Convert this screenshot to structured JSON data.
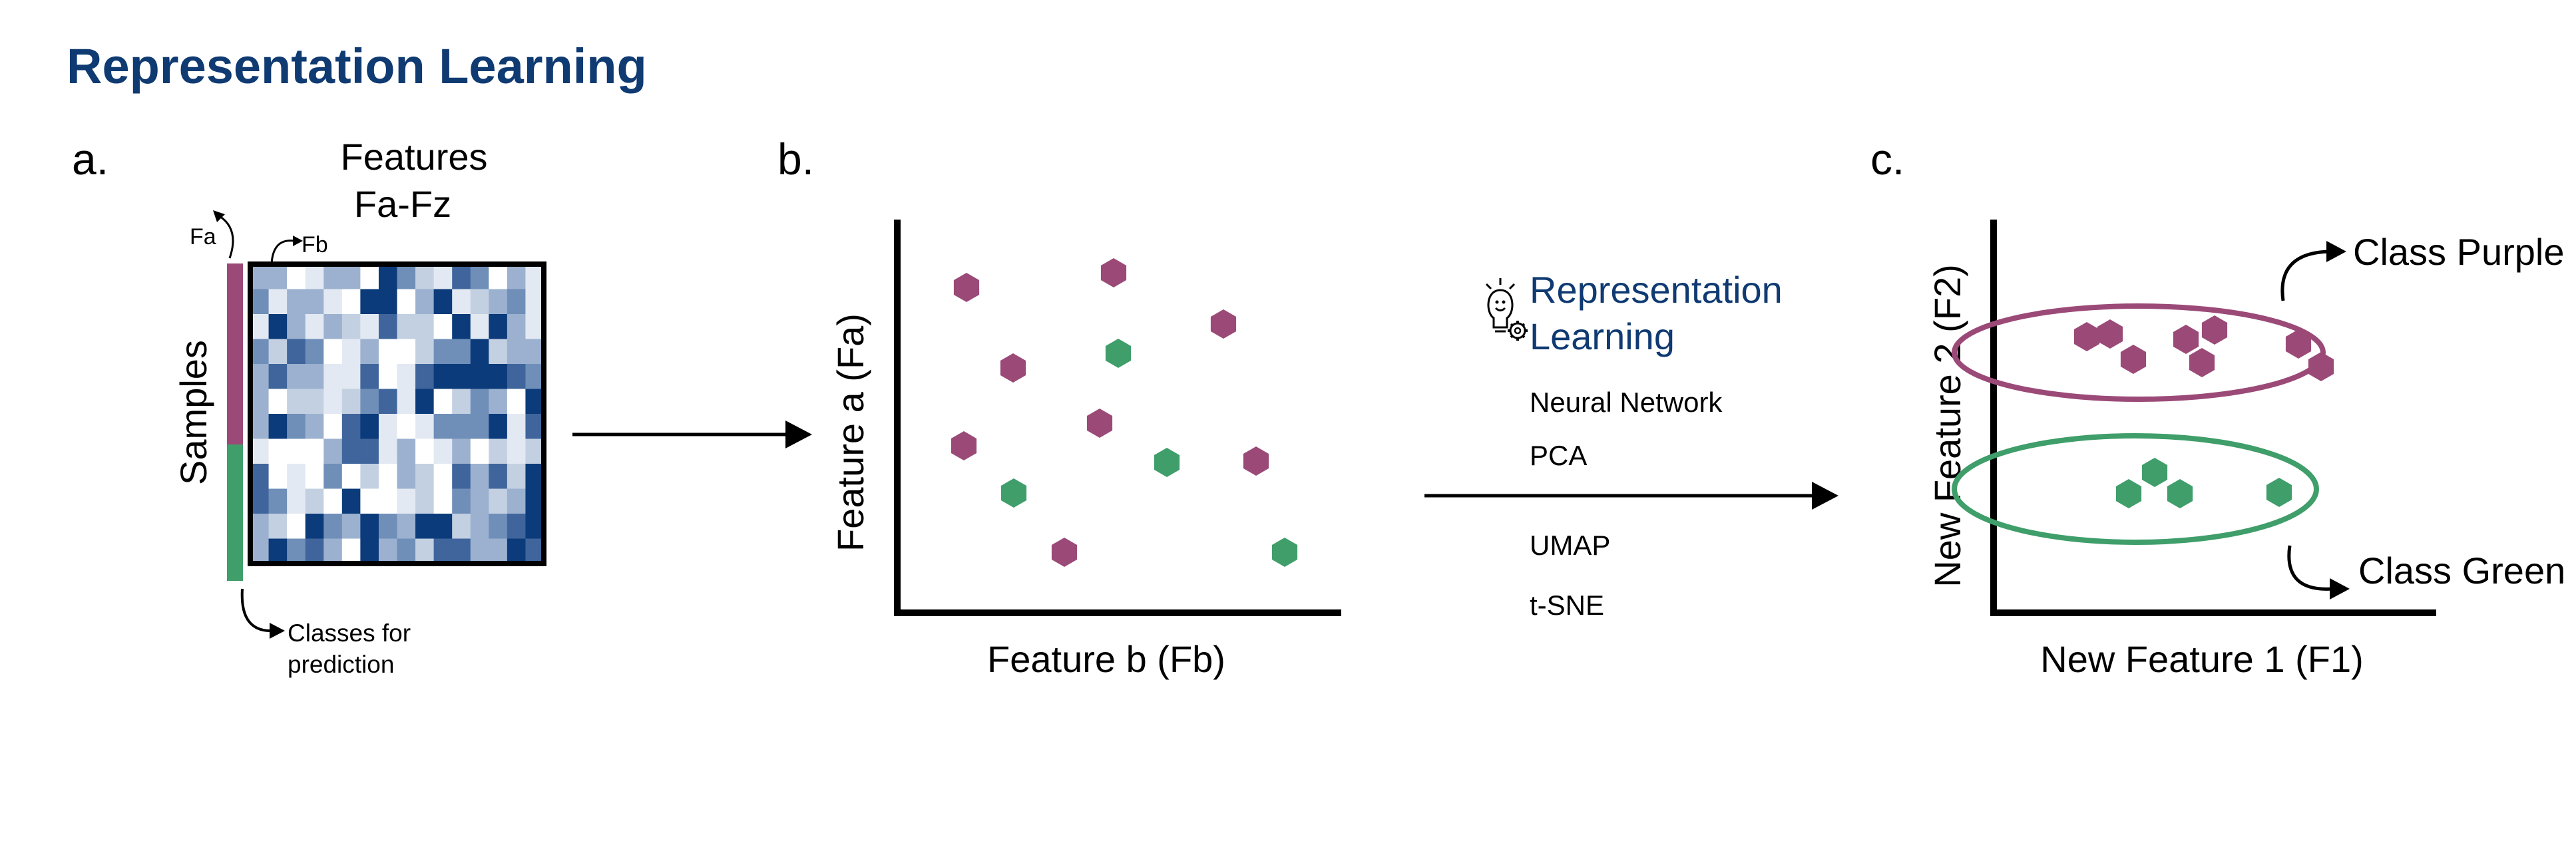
{
  "title": "Representation Learning",
  "colors": {
    "title": "#0f3a72",
    "purple": "#9b4a78",
    "green": "#3f9e6a",
    "matrix_dark": "#0b3b7a",
    "black": "#000000"
  },
  "panel_a": {
    "label": "a.",
    "features_title": "Features",
    "features_range": "Fa-Fz",
    "fa_label": "Fa",
    "fb_label": "Fb",
    "samples_label": "Samples",
    "classes_line1": "Classes for",
    "classes_line2": "prediction"
  },
  "panel_b": {
    "label": "b.",
    "xlabel": "Feature b (Fb)",
    "ylabel": "Feature a (Fa)"
  },
  "middle": {
    "heading_line1": "Representation",
    "heading_line2": "Learning",
    "icon": "lightbulb-gear-icon",
    "methods": [
      "Neural Network",
      "PCA",
      "UMAP",
      "t-SNE"
    ]
  },
  "panel_c": {
    "label": "c.",
    "xlabel": "New Feature 1 (F1)",
    "ylabel": "New Feature 2 (F2)",
    "class_purple": "Class Purple",
    "class_green": "Class Green"
  }
}
